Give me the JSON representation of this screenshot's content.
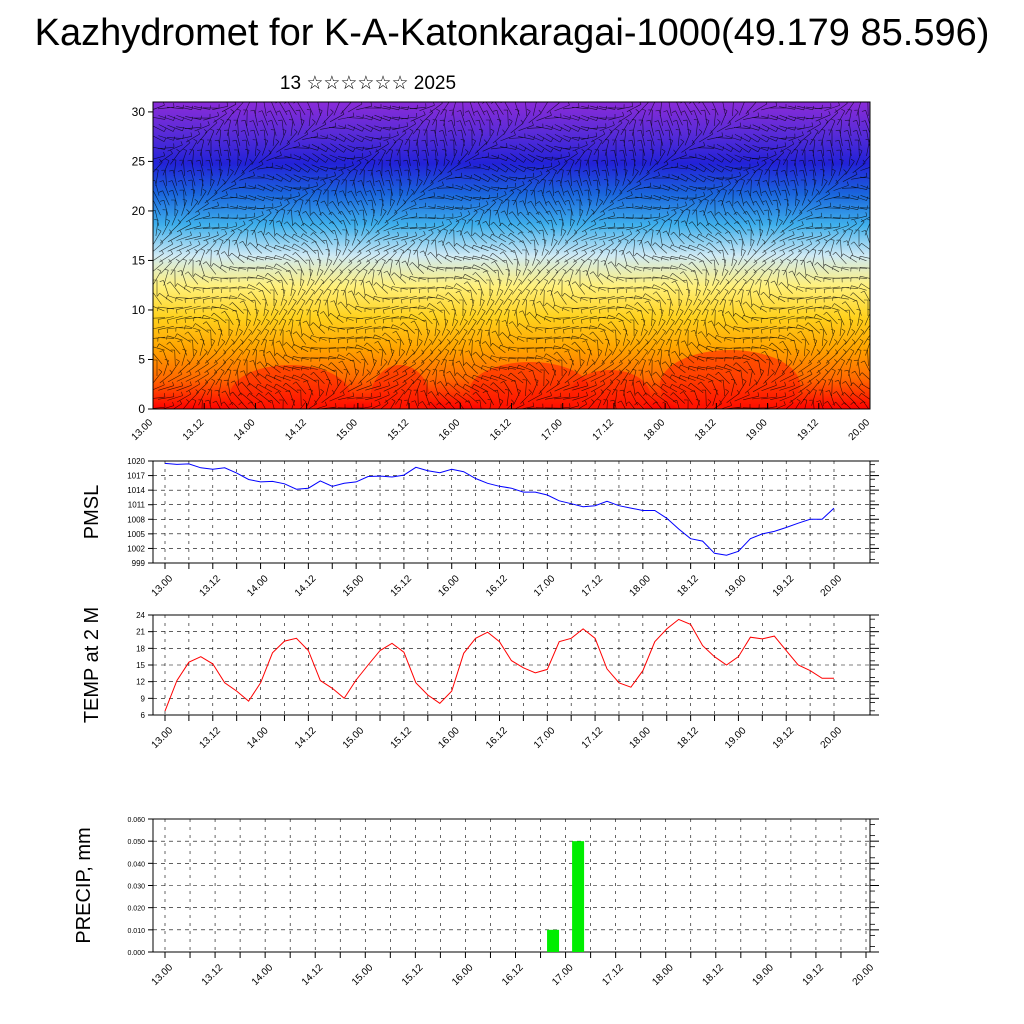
{
  "page": {
    "title": "Kazhydromet for K-A-Katonkaragai-1000(49.179 85.596)",
    "subtitle": "13 ☆☆☆☆☆☆ 2025"
  },
  "x_ticks": [
    "13.00",
    "13.12",
    "14.00",
    "14.12",
    "15.00",
    "15.12",
    "16.00",
    "16.12",
    "17.00",
    "17.12",
    "18.00",
    "18.12",
    "19.00",
    "19.12",
    "20.00"
  ],
  "colors": {
    "pmsl": "#0000ff",
    "temp": "#ff0000",
    "precip": "#00ee00",
    "grid": "#000000"
  },
  "chart_data": [
    {
      "type": "heatmap",
      "title": "",
      "xlabel": "",
      "ylabel": "",
      "x_ticks": [
        "13.00",
        "13.12",
        "14.00",
        "14.12",
        "15.00",
        "15.12",
        "16.00",
        "16.12",
        "17.00",
        "17.12",
        "18.00",
        "18.12",
        "19.00",
        "19.12",
        "20.00"
      ],
      "y_ticks": [
        0,
        5,
        10,
        15,
        20,
        25,
        30
      ],
      "ylim": [
        0,
        31
      ],
      "overlay": "wind barbs",
      "colorscale": [
        "#ff0000",
        "#ff6a00",
        "#ffa500",
        "#ffd21e",
        "#fff07a",
        "#cfeaf5",
        "#3fb0ec",
        "#1a66dd",
        "#2222d8",
        "#5a2bd8",
        "#8a2bd8"
      ]
    },
    {
      "type": "line",
      "ylabel": "PMSL",
      "ylim": [
        999,
        1020
      ],
      "y_ticks": [
        999,
        1002,
        1005,
        1008,
        1011,
        1014,
        1017,
        1020
      ],
      "x_ticks": [
        "13.00",
        "13.12",
        "14.00",
        "14.12",
        "15.00",
        "15.12",
        "16.00",
        "16.12",
        "17.00",
        "17.12",
        "18.00",
        "18.12",
        "19.00",
        "19.12",
        "20.00"
      ],
      "x": [
        0,
        3,
        6,
        9,
        12,
        15,
        18,
        21,
        24,
        27,
        30,
        33,
        36,
        39,
        42,
        45,
        48,
        51,
        54,
        57,
        60,
        63,
        66,
        69,
        72,
        75,
        78,
        81,
        84,
        87,
        90,
        93,
        96,
        99,
        102,
        105,
        108,
        111,
        114,
        117,
        120,
        123,
        126,
        129,
        132,
        135,
        138,
        141,
        144,
        147,
        150,
        153,
        156,
        159,
        162,
        165,
        168
      ],
      "series": [
        {
          "values": [
            1019.5,
            1019.3,
            1019.4,
            1018.6,
            1018.3,
            1018.6,
            1017.5,
            1016.2,
            1015.7,
            1015.8,
            1015.3,
            1014.2,
            1014.4,
            1015.9,
            1014.8,
            1015.4,
            1015.7,
            1016.8,
            1016.9,
            1016.7,
            1017.1,
            1018.7,
            1018.0,
            1017.6,
            1018.3,
            1017.8,
            1016.4,
            1015.4,
            1014.8,
            1014.4,
            1013.6,
            1013.6,
            1013.0,
            1011.8,
            1011.2,
            1010.6,
            1010.8,
            1011.7,
            1010.8,
            1010.3,
            1009.8,
            1009.8,
            1008.2,
            1006.0,
            1004.0,
            1003.5,
            1001.0,
            1000.6,
            1001.4,
            1004.0,
            1005.0,
            1005.5,
            1006.3,
            1007.2,
            1008.0,
            1008.0,
            1010.3
          ]
        }
      ]
    },
    {
      "type": "line",
      "ylabel": "TEMP at 2 M",
      "ylim": [
        6,
        24
      ],
      "y_ticks": [
        6,
        9,
        12,
        15,
        18,
        21,
        24
      ],
      "x_ticks": [
        "13.00",
        "13.12",
        "14.00",
        "14.12",
        "15.00",
        "15.12",
        "16.00",
        "16.12",
        "17.00",
        "17.12",
        "18.00",
        "18.12",
        "19.00",
        "19.12",
        "20.00"
      ],
      "x": [
        0,
        3,
        6,
        9,
        12,
        15,
        18,
        21,
        24,
        27,
        30,
        33,
        36,
        39,
        42,
        45,
        48,
        51,
        54,
        57,
        60,
        63,
        66,
        69,
        72,
        75,
        78,
        81,
        84,
        87,
        90,
        93,
        96,
        99,
        102,
        105,
        108,
        111,
        114,
        117,
        120,
        123,
        126,
        129,
        132,
        135,
        138,
        141,
        144,
        147,
        150,
        153,
        156,
        159,
        162,
        165,
        168
      ],
      "series": [
        {
          "values": [
            6.7,
            12.2,
            15.5,
            16.5,
            15.2,
            11.8,
            10.3,
            8.5,
            11.8,
            17.2,
            19.3,
            19.8,
            17.6,
            12.2,
            10.8,
            9.0,
            12.3,
            15.0,
            17.6,
            18.9,
            17.3,
            11.8,
            9.6,
            8.1,
            10.3,
            17.1,
            19.8,
            20.9,
            19.2,
            15.8,
            14.5,
            13.6,
            14.2,
            19.2,
            19.8,
            21.5,
            19.8,
            14.3,
            11.8,
            11.0,
            14.0,
            19.2,
            21.5,
            23.2,
            22.3,
            18.5,
            16.5,
            15.0,
            16.5,
            20.0,
            19.7,
            20.2,
            17.6,
            15.0,
            14.0,
            12.6,
            12.6
          ]
        }
      ]
    },
    {
      "type": "bar",
      "ylabel": "PRECIP, mm",
      "ylim": [
        0,
        0.06
      ],
      "y_ticks": [
        "0.000",
        "0.010",
        "0.020",
        "0.030",
        "0.040",
        "0.050",
        "0.060"
      ],
      "x_ticks": [
        "13.00",
        "13.12",
        "14.00",
        "14.12",
        "15.00",
        "15.12",
        "16.00",
        "16.12",
        "17.00",
        "17.12",
        "18.00",
        "18.12",
        "19.00",
        "19.12",
        "20.00"
      ],
      "x": [
        93,
        99
      ],
      "values": [
        0.01,
        0.05
      ]
    }
  ]
}
